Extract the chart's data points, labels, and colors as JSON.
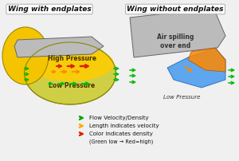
{
  "title_left": "Wing with endplates",
  "title_right": "Wing without endplates",
  "left_hp_label": "High Pressure",
  "left_lp_label": "Low Pressure",
  "right_spill_label": "Air spilling\nover end",
  "right_lp_label": "Low Pressure",
  "legend_items": [
    {
      "color": "#00aa00",
      "text": "Flow Velocity/Density"
    },
    {
      "color": "#ffaa00",
      "text": "Length indicates velocity"
    },
    {
      "color": "#dd2200",
      "text": "Color indicates density"
    },
    {
      "color": "#666666",
      "text": "(Green low → Red=high)"
    }
  ],
  "bg_color": "#f0f0f0",
  "wing_color": "#bbbbbb",
  "wing_edge": "#666666",
  "endplate_color": "#f5c400",
  "endplate_edge": "#998800",
  "hp_color": "#ffcc00",
  "lp_color": "#cccc33",
  "lp_edge": "#888800",
  "blue_color": "#4499ee",
  "orange_color": "#ff8800",
  "green_color": "#00bb00",
  "red_color": "#dd2200",
  "title_font_size": 6.5,
  "label_font_size": 5.5,
  "legend_font_size": 5.0
}
